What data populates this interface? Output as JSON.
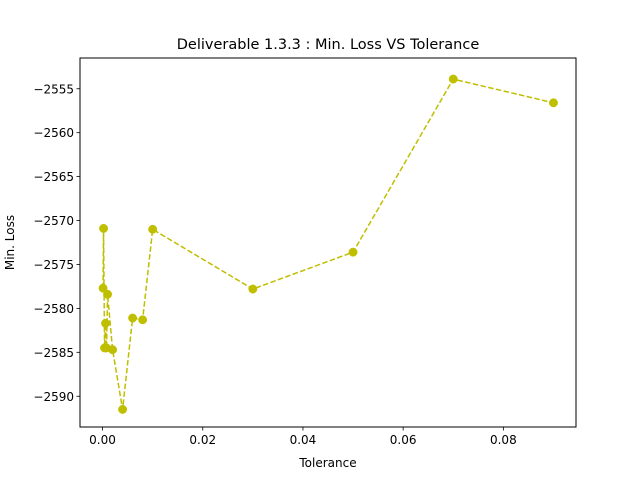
{
  "chart_data": {
    "type": "line",
    "title": "Deliverable 1.3.3 : Min. Loss VS Tolerance",
    "xlabel": "Tolerance",
    "ylabel": "Min. Loss",
    "xlim": [
      -0.0045,
      0.0945
    ],
    "ylim": [
      -2593.5,
      -2551.5
    ],
    "xticks": [
      0.0,
      0.02,
      0.04,
      0.06,
      0.08
    ],
    "xtick_labels": [
      "0.00",
      "0.02",
      "0.04",
      "0.06",
      "0.08"
    ],
    "yticks": [
      -2555,
      -2560,
      -2565,
      -2570,
      -2575,
      -2580,
      -2585,
      -2590
    ],
    "ytick_labels": [
      "−2555",
      "−2560",
      "−2565",
      "−2570",
      "−2575",
      "−2580",
      "−2585",
      "−2590"
    ],
    "grid": false,
    "colors": {
      "series": "#bfbf00",
      "axes": "#000000"
    },
    "series": [
      {
        "line_style": "dashed",
        "marker": "circle",
        "x": [
          0.0001,
          0.0002,
          0.0004,
          0.0006,
          0.0008,
          0.001,
          0.002,
          0.004,
          0.006,
          0.008,
          0.01,
          0.03,
          0.05,
          0.07,
          0.09
        ],
        "y": [
          -2577.7,
          -2570.9,
          -2584.5,
          -2581.7,
          -2584.5,
          -2578.4,
          -2584.7,
          -2591.5,
          -2581.1,
          -2581.3,
          -2571.0,
          -2577.8,
          -2573.6,
          -2553.9,
          -2556.6
        ]
      }
    ]
  }
}
